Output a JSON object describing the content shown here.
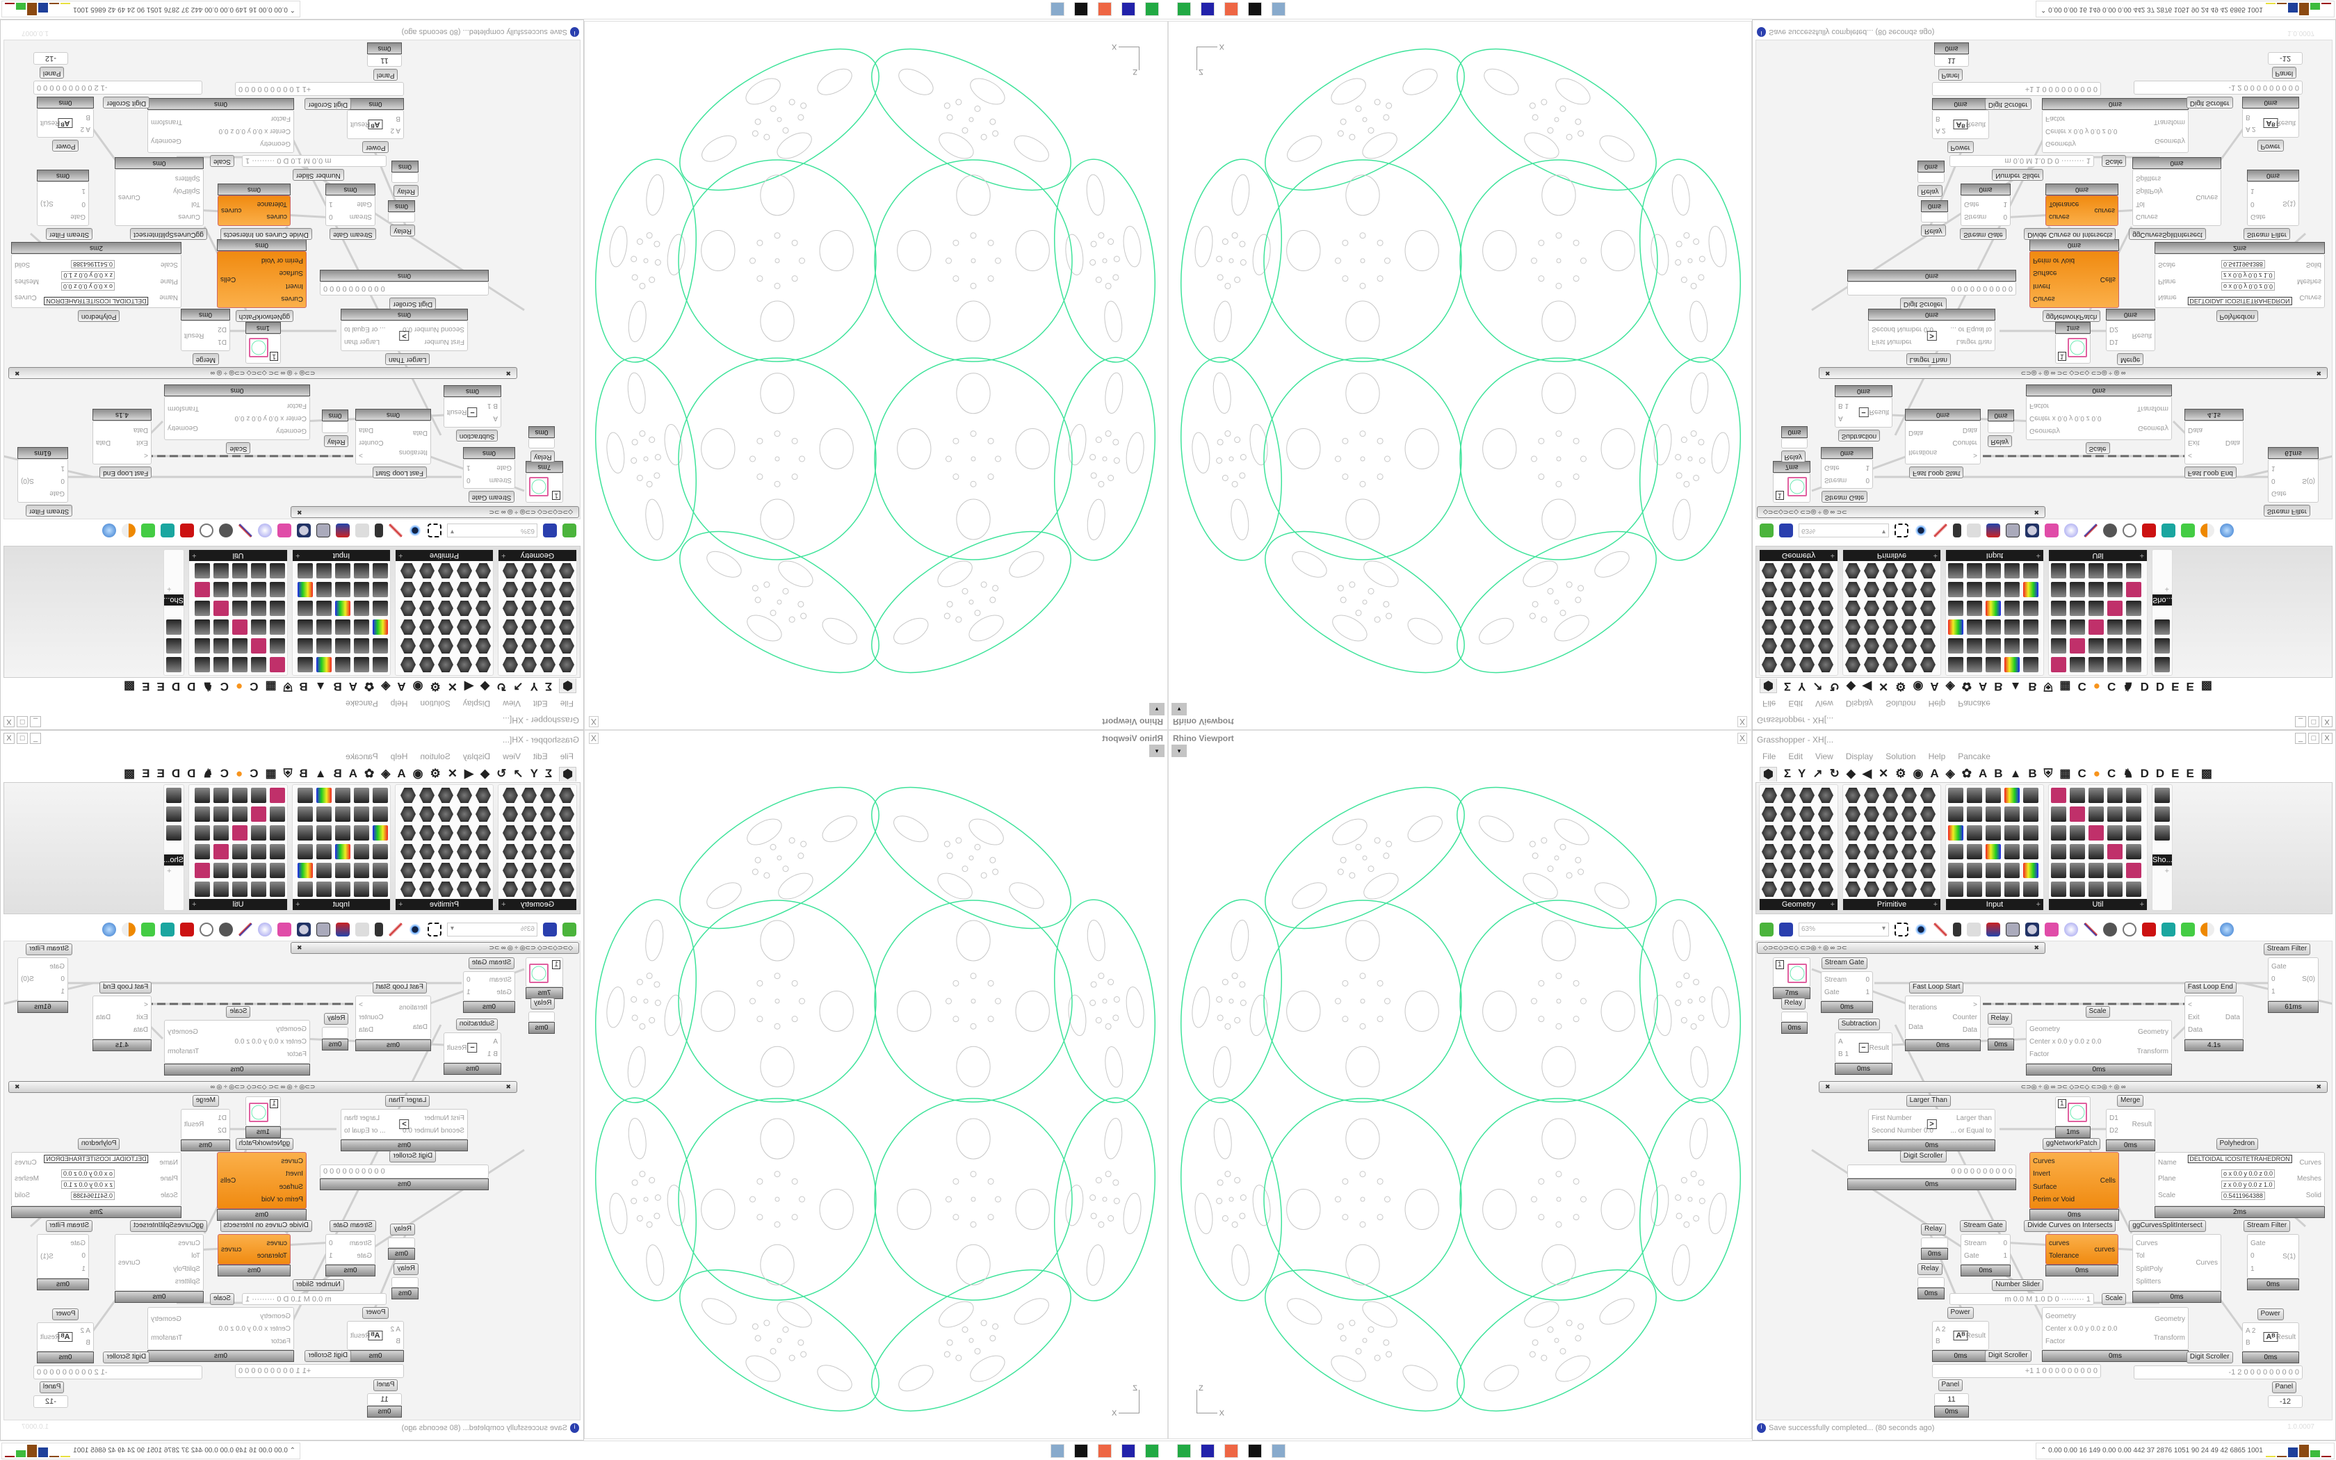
{
  "viewport": {
    "title": "Rhino Viewport",
    "close": "X",
    "dropdown": "▾",
    "axis": {
      "z": "Z",
      "x": "X"
    },
    "curve_color": "#3ee39a",
    "detail_color": "#c8c8c8"
  },
  "grasshopper": {
    "title": "Grasshopper - XH[...",
    "window_controls": [
      "_",
      "□",
      "X"
    ],
    "menu": [
      "File",
      "Edit",
      "View",
      "Display",
      "Solution",
      "Help",
      "Pancake"
    ],
    "tabs": [
      "⬢",
      "Σ",
      "Y",
      "↗",
      "↻",
      "◆",
      "◀",
      "✕",
      "⚙",
      "◉",
      "A",
      "◈",
      "✿",
      "A",
      "B",
      "▲",
      "B",
      "⛨",
      "▦",
      "C",
      "●",
      "C",
      "♞",
      "D",
      "D",
      "E",
      "E",
      "▩"
    ],
    "panels": [
      {
        "label": "Geometry"
      },
      {
        "label": "Primitive"
      },
      {
        "label": "Input"
      },
      {
        "label": "Util"
      },
      {
        "label": "Sho..."
      }
    ],
    "toolbar": {
      "zoom": "63%"
    },
    "accent_orange": "#f7941d",
    "nodes": [
      {
        "type": "circle-param",
        "value": "1",
        "time": "7ms"
      },
      {
        "name": "Stream Gate",
        "inputs": [
          "Stream",
          "Gate"
        ],
        "outputs": [
          "0",
          "1"
        ],
        "time": "0ms"
      },
      {
        "name": "Relay",
        "inputs": [],
        "outputs": [],
        "time": "0ms"
      },
      {
        "name": "Subtraction",
        "inputs": [
          "A",
          "B 1"
        ],
        "outputs": [
          "Result"
        ],
        "icon": "−",
        "time": "0ms"
      },
      {
        "name": "Fast Loop Start",
        "inputs": [
          "Iterations",
          "Data"
        ],
        "outputs": [
          ">",
          "Counter",
          "Data"
        ],
        "time": "0ms"
      },
      {
        "name": "Relay",
        "inputs": [],
        "outputs": [],
        "time": "0ms"
      },
      {
        "name": "Scale",
        "inputs": [
          "Geometry",
          "Center x 0.0 y 0.0 z 0.0",
          "Factor"
        ],
        "outputs": [
          "Geometry",
          "Transform"
        ],
        "time": "0ms"
      },
      {
        "name": "Fast Loop End",
        "inputs": [
          "<",
          "Exit",
          "Data"
        ],
        "outputs": [
          "Data"
        ],
        "time": "4.1s"
      },
      {
        "name": "Stream Filter",
        "inputs": [
          "Gate",
          "0",
          "1"
        ],
        "outputs": [
          "S(0)"
        ],
        "time": "61ms"
      },
      {
        "name": "Larger Than",
        "inputs": [
          "First Number",
          "Second Number 0.0"
        ],
        "outputs": [
          "Larger than",
          "... or Equal to"
        ],
        "icon": ">",
        "time": "0ms"
      },
      {
        "type": "circle-param",
        "value": "1",
        "time": "1ms"
      },
      {
        "name": "Merge",
        "inputs": [
          "D1",
          "D2"
        ],
        "outputs": [
          "Result"
        ],
        "time": "0ms"
      },
      {
        "name": "Digit Scroller",
        "type": "slider",
        "value": "0 0 0 0 0 0 0 0 0 0",
        "time": "0ms"
      },
      {
        "name": "ggNetworkPatch",
        "style": "orange",
        "inputs": [
          "Curves",
          "Invert",
          "Surface",
          "Perim or Void"
        ],
        "outputs": [
          "Cells"
        ],
        "time": "0ms"
      },
      {
        "name": "Polyhedron",
        "inputs": [
          "Name",
          "Plane",
          "Scale"
        ],
        "outputs": [
          "Curves",
          "Meshes",
          "Solid"
        ],
        "value": "DELTOIDAL ICOSITETRAHEDRON",
        "extra": [
          "o x 0.0 y 0.0 z 0.0",
          "z x 0.0 y 0.0 z 1.0",
          "0.5411964388"
        ],
        "time": "2ms"
      },
      {
        "name": "Relay",
        "inputs": [],
        "outputs": [],
        "time": "0ms"
      },
      {
        "name": "Relay",
        "inputs": [],
        "outputs": [],
        "time": "0ms"
      },
      {
        "name": "Stream Gate",
        "inputs": [
          "Stream",
          "Gate"
        ],
        "outputs": [
          "0",
          "1"
        ],
        "time": "0ms"
      },
      {
        "name": "Divide Curves on Intersects",
        "style": "orange",
        "inputs": [
          "curves",
          "Tolerance"
        ],
        "outputs": [
          "curves"
        ],
        "time": "0ms"
      },
      {
        "name": "ggCurvesSplitIntersect",
        "inputs": [
          "Curves",
          "Tol",
          "SplitPoly",
          "Splitters"
        ],
        "outputs": [
          "Curves"
        ],
        "time": "0ms"
      },
      {
        "name": "Stream Filter",
        "inputs": [
          "Gate",
          "0",
          "1"
        ],
        "outputs": [
          "S(1)"
        ],
        "time": "0ms"
      },
      {
        "name": "Number Slider",
        "type": "slider",
        "value": "m 0.0  M 1.0  D 0   ·········  1"
      },
      {
        "name": "Power",
        "inputs": [
          "A 2",
          "B"
        ],
        "outputs": [
          "Result"
        ],
        "icon": "Aᴮ",
        "time": "0ms"
      },
      {
        "name": "Scale",
        "inputs": [
          "Geometry",
          "Center x 0.0 y 0.0 z 0.0",
          "Factor"
        ],
        "outputs": [
          "Geometry",
          "Transform"
        ],
        "time": "0ms"
      },
      {
        "name": "Power",
        "inputs": [
          "A 2",
          "B"
        ],
        "outputs": [
          "Result"
        ],
        "icon": "Aᴮ",
        "time": "0ms"
      },
      {
        "name": "Digit Scroller",
        "type": "slider",
        "value": "+1 1 0 0 0 0 0 0 0 0 0"
      },
      {
        "name": "Digit Scroller",
        "type": "slider",
        "value": "-1 2 0 0 0 0 0 0 0 0 0"
      },
      {
        "name": "Panel",
        "type": "panel",
        "value": "11",
        "time": "0ms"
      },
      {
        "name": "Panel",
        "type": "panel",
        "value": "-12"
      }
    ],
    "status": {
      "message": "Save successfully completed... (80 seconds ago)",
      "version": "1.0.0007"
    }
  },
  "taskbar": {
    "icons": [
      "terminal-icon",
      "floppy-64-icon",
      "firefox-icon",
      "inkscape-icon",
      "calculator-icon"
    ],
    "stats": "0.00 0.00 16 149 0.00 0.00 442 37 2876 1051 90 24 49 42 6865 1001",
    "bar_colors": [
      "#e8e040",
      "#8b4a12",
      "#1e3f9a",
      "#8b4a12",
      "#3dbb3d",
      "#9a1010"
    ]
  }
}
